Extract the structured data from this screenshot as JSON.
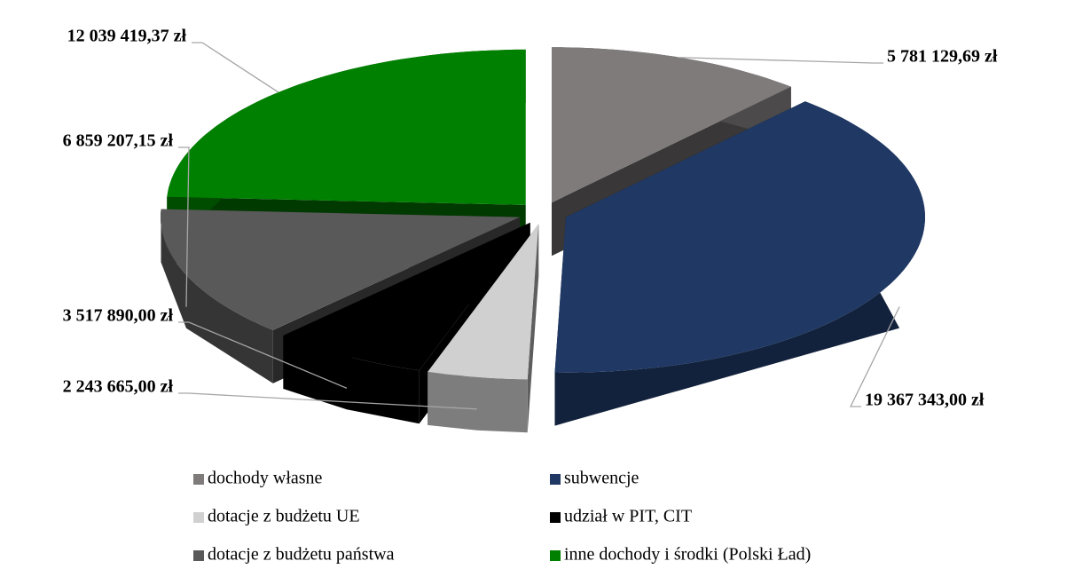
{
  "chart_data": {
    "type": "pie3d",
    "categories": [
      "dochody własne",
      "subwencje",
      "dotacje z budżetu UE",
      "udział w PIT, CIT",
      "dotacje z budżetu państwa",
      "inne dochody i środki (Polski Ład)"
    ],
    "values": [
      5781129.69,
      19367343.0,
      2243665.0,
      3517890.0,
      6859207.15,
      12039419.37
    ],
    "value_labels": [
      "5 781 129,69 zł",
      "19 367 343,00 zł",
      "2 243 665,00 zł",
      "3 517 890,00 zł",
      "6 859 207,15 zł",
      "12 039 419,37 zł"
    ],
    "colors": [
      "#7f7b7b",
      "#1f3864",
      "#d0d0d0",
      "#000000",
      "#595959",
      "#008000"
    ],
    "legend": "bottom"
  }
}
